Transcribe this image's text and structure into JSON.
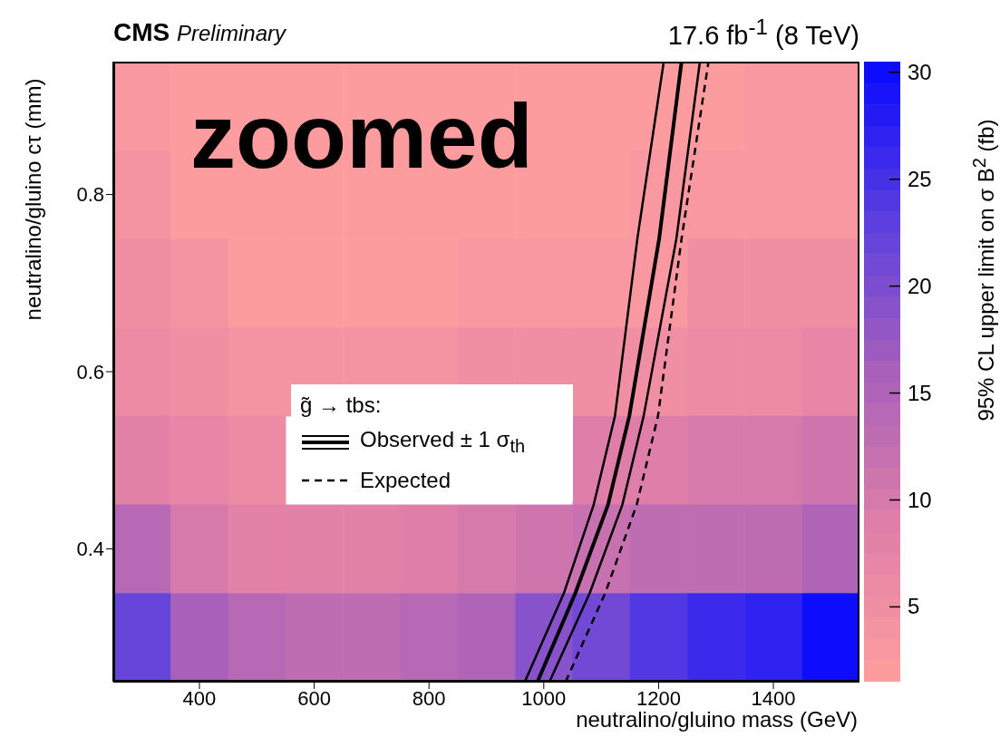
{
  "chart_data": [
    {
      "type": "heatmap",
      "clabel": "95% CL upper limit on σ B$^{2}$ (fb)",
      "categories": [
        null,
        null,
        null,
        null,
        null,
        null,
        null,
        null,
        null,
        null,
        null,
        null,
        null
      ],
      "y_categories": [
        null,
        null,
        null,
        null,
        null,
        null,
        null
      ],
      "cells": [
        [
          3,
          2,
          2,
          2,
          2,
          2,
          2,
          2,
          2,
          2,
          2,
          3,
          3
        ],
        [
          4,
          2,
          2,
          2,
          2,
          2,
          2,
          2,
          2,
          3,
          3,
          3,
          3
        ],
        [
          4.5,
          3.5,
          2,
          2,
          2,
          2,
          3,
          3,
          3,
          3,
          4.5,
          4.5,
          4.5
        ],
        [
          6,
          4.5,
          3.5,
          3.5,
          3.5,
          3.5,
          5,
          5,
          5,
          5,
          5.5,
          5.5,
          7
        ],
        [
          8,
          6.5,
          6,
          null,
          null,
          null,
          null,
          null,
          8.5,
          9,
          9.5,
          10,
          10.5
        ],
        [
          14,
          10,
          8,
          8,
          8,
          9,
          10,
          11,
          12,
          12.5,
          13,
          13,
          15
        ],
        [
          22,
          16,
          14,
          13,
          13,
          14,
          15,
          19,
          21,
          24,
          26,
          27,
          30
        ]
      ],
      "clim": [
        1.5,
        30.5
      ],
      "cticks": [
        5,
        10,
        15,
        20,
        25,
        30
      ]
    },
    {
      "type": "line",
      "title": "CMS",
      "subtitle": "Preliminary",
      "xlabel": "neutralino/gluino mass (GeV)",
      "ylabel": "neutralino/gluino cτ (mm)",
      "legend_title": "g̃ → tbs:",
      "legend": "center",
      "grid": false,
      "annotations": [
        "17.6 fb$^{-1}$ (8 TeV)",
        "zoomed"
      ],
      "xlim": [
        250,
        1550
      ],
      "xticks": [
        400,
        600,
        800,
        1000,
        1200,
        1400
      ],
      "ylim": [
        0.25,
        0.95
      ],
      "yticks": [
        0.4,
        0.6,
        0.8
      ],
      "series": [
        {
          "x": [
            967,
            1035,
            1087,
            1124,
            1163,
            1209
          ],
          "values": [
            0.25,
            0.35,
            0.45,
            0.55,
            0.75,
            0.95
          ],
          "color": "#000000",
          "line_style": "solid"
        },
        {
          "name": "Observed ± 1 σ$_{th}$",
          "x": [
            989,
            1055,
            1112,
            1149,
            1201,
            1240
          ],
          "values": [
            0.25,
            0.35,
            0.45,
            0.55,
            0.75,
            0.95
          ],
          "color": "#000000",
          "line_style": "solid"
        },
        {
          "x": [
            1010,
            1080,
            1137,
            1174,
            1231,
            1272
          ],
          "values": [
            0.25,
            0.35,
            0.45,
            0.55,
            0.75,
            0.95
          ],
          "color": "#000000",
          "line_style": "solid"
        },
        {
          "name": "Expected",
          "x": [
            1038,
            1107,
            1162,
            1199,
            1240,
            1287
          ],
          "values": [
            0.25,
            0.35,
            0.45,
            0.55,
            0.75,
            0.95
          ],
          "color": "#000000",
          "line_style": "dashed"
        }
      ]
    }
  ]
}
